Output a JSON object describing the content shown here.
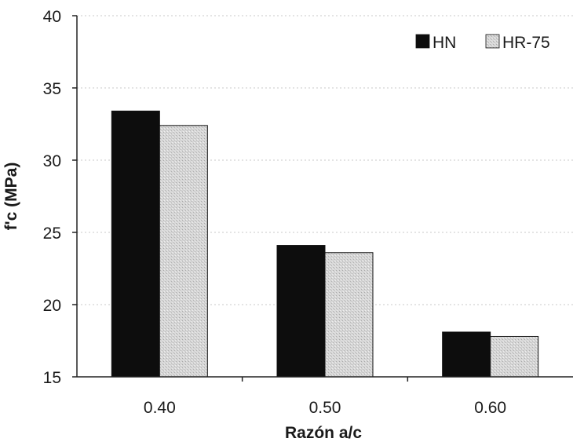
{
  "chart_data": {
    "type": "bar",
    "categories": [
      "0.40",
      "0.50",
      "0.60"
    ],
    "series": [
      {
        "name": "HN",
        "values": [
          33.4,
          24.1,
          18.1
        ]
      },
      {
        "name": "HR-75",
        "values": [
          32.4,
          23.6,
          17.8
        ]
      }
    ],
    "xlabel": "Razón a/c",
    "ylabel": "f'c (MPa)",
    "ylim": [
      15,
      40
    ],
    "yticks": [
      15,
      20,
      25,
      30,
      35,
      40
    ],
    "grid": true,
    "legend_position": "top-right",
    "colors": {
      "HN": "#0d0d0d",
      "HR-75": "#d4d4d4"
    }
  }
}
